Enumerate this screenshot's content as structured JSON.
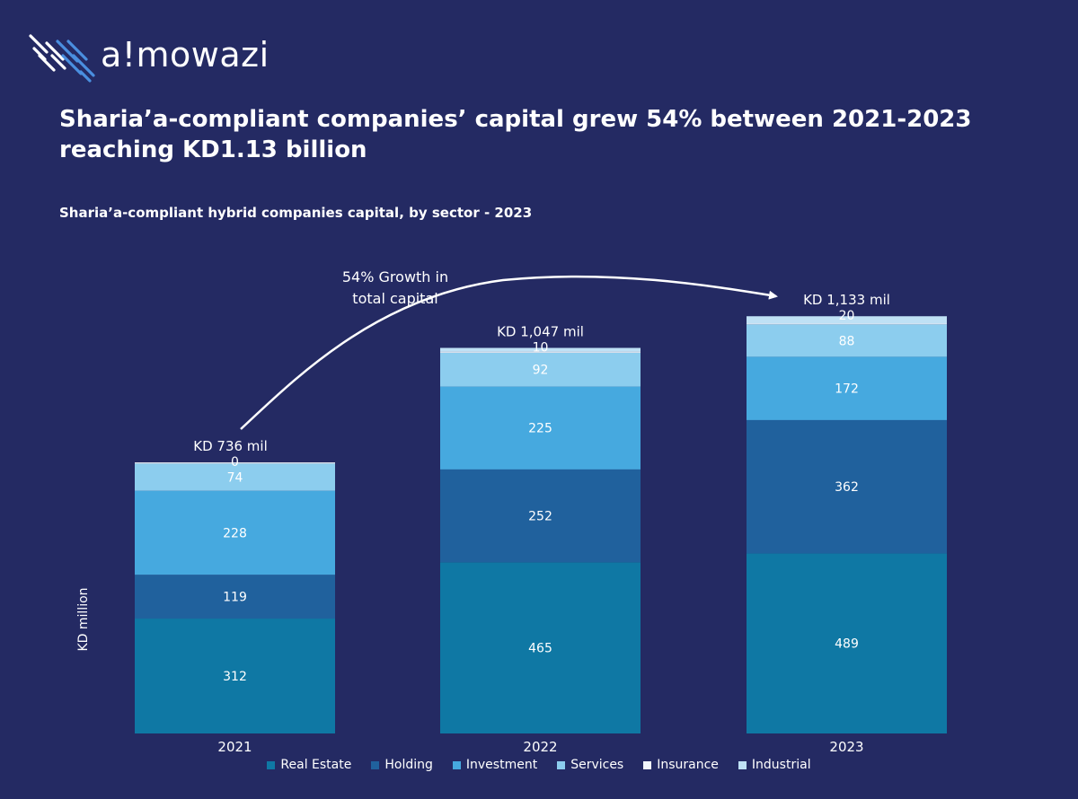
{
  "brand": {
    "name": "a!mowazi"
  },
  "title": "Sharia’a-compliant companies’ capital grew 54% between 2021-2023 reaching KD1.13 billion",
  "subtitle": "Sharia’a-compliant hybrid companies capital, by sector - 2023",
  "chart_data": {
    "type": "bar",
    "stacked": true,
    "categories": [
      "2021",
      "2022",
      "2023"
    ],
    "series": [
      {
        "name": "Real Estate",
        "color": "#0f78a4",
        "values": [
          312,
          465,
          489
        ]
      },
      {
        "name": "Holding",
        "color": "#20619d",
        "values": [
          119,
          252,
          362
        ]
      },
      {
        "name": "Investment",
        "color": "#46a9df",
        "values": [
          228,
          225,
          172
        ]
      },
      {
        "name": "Services",
        "color": "#8ccdee",
        "values": [
          74,
          92,
          88
        ]
      },
      {
        "name": "Insurance",
        "color": "#f2f6fb",
        "values": [
          3,
          3,
          2
        ]
      },
      {
        "name": "Industrial",
        "color": "#bfe1f5",
        "values": [
          0,
          10,
          20
        ]
      }
    ],
    "segment_labels": [
      [
        "312",
        "119",
        "228",
        "74",
        "",
        "0"
      ],
      [
        "465",
        "252",
        "225",
        "92",
        "",
        "10"
      ],
      [
        "489",
        "362",
        "172",
        "88",
        "",
        "20"
      ]
    ],
    "totals": [
      "KD 736 mil",
      "KD 1,047 mil",
      "KD 1,133 mil"
    ],
    "ylabel": "KD million",
    "annotation": "54% Growth in total capital",
    "annotation_lines": [
      "54% Growth in",
      "total capital"
    ],
    "grid": false,
    "legend_position": "bottom"
  }
}
